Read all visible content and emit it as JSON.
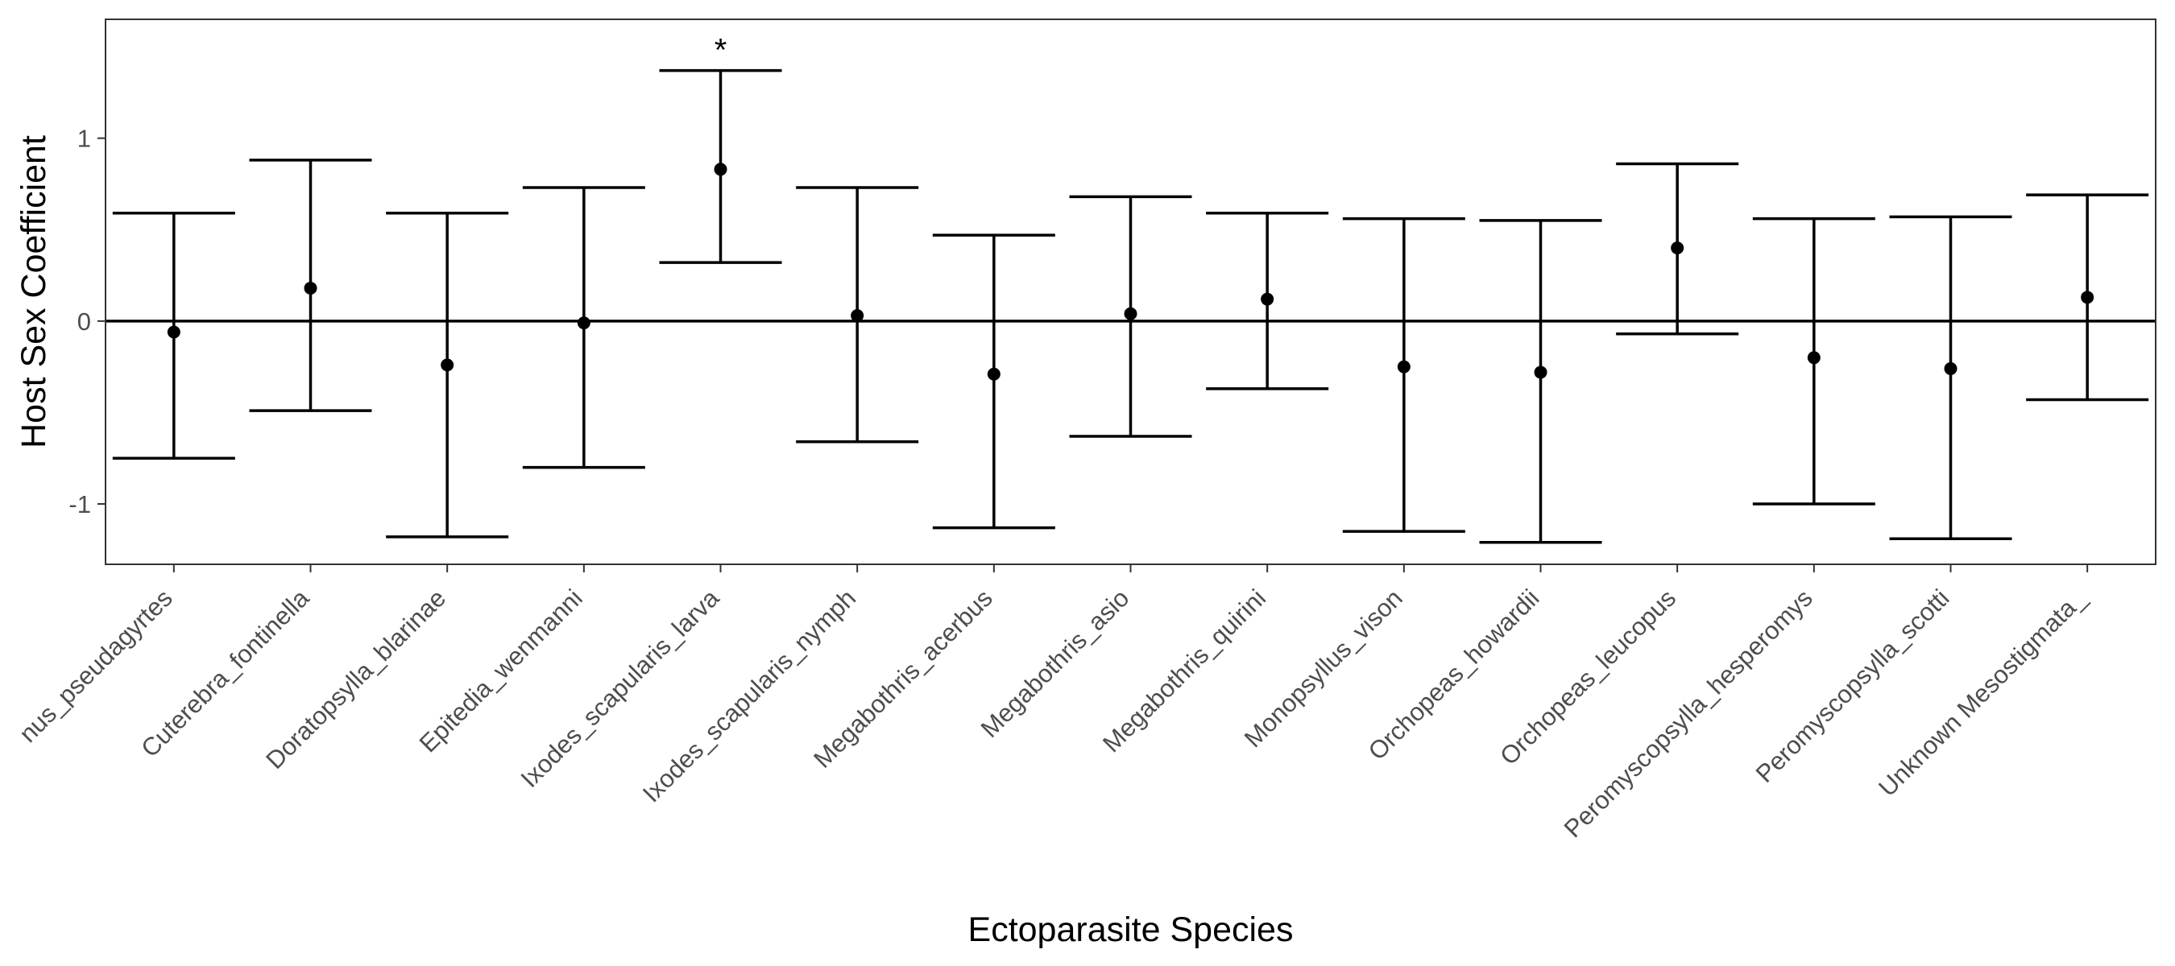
{
  "chart_data": {
    "type": "errorbar",
    "title": "",
    "xlabel": "Ectoparasite Species",
    "ylabel": "Host Sex Coefficient",
    "ylim": [
      -1.33,
      1.65
    ],
    "yticks": [
      -1,
      0,
      1
    ],
    "ytick_labels": [
      "-1",
      "0",
      "1"
    ],
    "reference_line_y": 0,
    "grid": false,
    "legend": "none",
    "categories": [
      "Amblyomma_americanum_pseudagyrtes",
      "Cuterebra_fontinella",
      "Doratopsylla_blarinae",
      "Epitedia_wenmanni",
      "Ixodes_scapularis_larva",
      "Ixodes_scapularis_nymph",
      "Megabothris_acerbus",
      "Megabothris_asio",
      "Megabothris_quirini",
      "Monopsyllus_vison",
      "Orchopeas_howardii",
      "Orchopeas_leucopus",
      "Peromyscopsylla_hesperomys",
      "Peromyscopsylla_scotti",
      "Unknown Mesostigmata_"
    ],
    "tick_labels": [
      "nus_pseudagyrtes",
      "Cuterebra_fontinella",
      "Doratopsylla_blarinae",
      "Epitedia_wenmanni",
      "Ixodes_scapularis_larva",
      "Ixodes_scapularis_nymph",
      "Megabothris_acerbus",
      "Megabothris_asio",
      "Megabothris_quirini",
      "Monopsyllus_vison",
      "Orchopeas_howardii",
      "Orchopeas_leucopus",
      "Peromyscopsylla_hesperomys",
      "Peromyscopsylla_scotti",
      "Unknown Mesostigmata_"
    ],
    "estimate": [
      -0.06,
      0.18,
      -0.24,
      -0.01,
      0.83,
      0.03,
      -0.29,
      0.04,
      0.12,
      -0.25,
      -0.28,
      0.4,
      -0.2,
      -0.26,
      0.13
    ],
    "lower": [
      -0.75,
      -0.49,
      -1.18,
      -0.8,
      0.32,
      -0.66,
      -1.13,
      -0.63,
      -0.37,
      -1.15,
      -1.21,
      -0.07,
      -1.0,
      -1.19,
      -0.43
    ],
    "upper": [
      0.59,
      0.88,
      0.59,
      0.73,
      1.37,
      0.73,
      0.47,
      0.68,
      0.59,
      0.56,
      0.55,
      0.86,
      0.56,
      0.57,
      0.69
    ],
    "annotations": [
      {
        "category": "Ixodes_scapularis_larva",
        "text": "*"
      }
    ],
    "colors": {
      "marks": "#000000",
      "tick_label": "#4d4d4d",
      "panel_border": "#333333",
      "background": "#ffffff"
    }
  }
}
